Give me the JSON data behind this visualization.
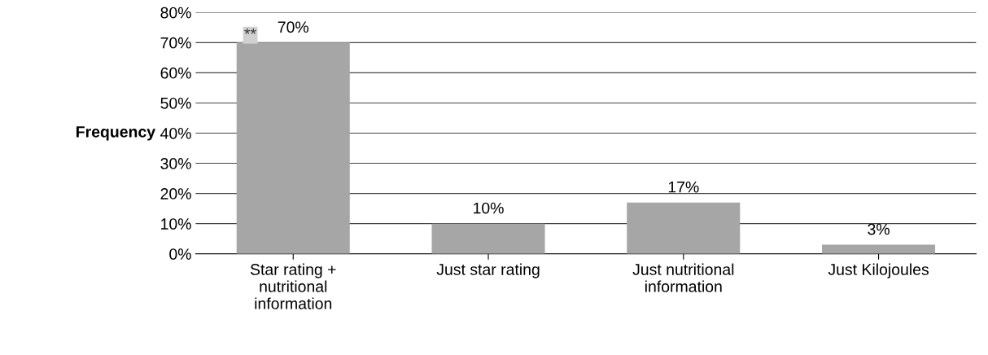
{
  "chart_data": {
    "type": "bar",
    "ylabel": "Frequency",
    "categories": [
      "Star rating + nutritional information",
      "Just star rating",
      "Just nutritional information",
      "Just Kilojoules"
    ],
    "values": [
      70,
      10,
      17,
      3
    ],
    "color": "#a6a6a6",
    "value_labels": [
      "70%",
      "10%",
      "17%",
      "3%"
    ],
    "ylim": [
      0,
      80
    ],
    "yticks": [
      {
        "value": 0,
        "label": "0%"
      },
      {
        "value": 10,
        "label": "10%"
      },
      {
        "value": 20,
        "label": "20%"
      },
      {
        "value": 30,
        "label": "30%"
      },
      {
        "value": 40,
        "label": "40%"
      },
      {
        "value": 50,
        "label": "50%"
      },
      {
        "value": 60,
        "label": "60%"
      },
      {
        "value": 70,
        "label": "70%"
      },
      {
        "value": 80,
        "label": "80%"
      }
    ],
    "annotations": [
      {
        "text": "**",
        "x": "Star rating + nutritional information",
        "y": 70
      }
    ],
    "grid": "y",
    "legend": false
  }
}
